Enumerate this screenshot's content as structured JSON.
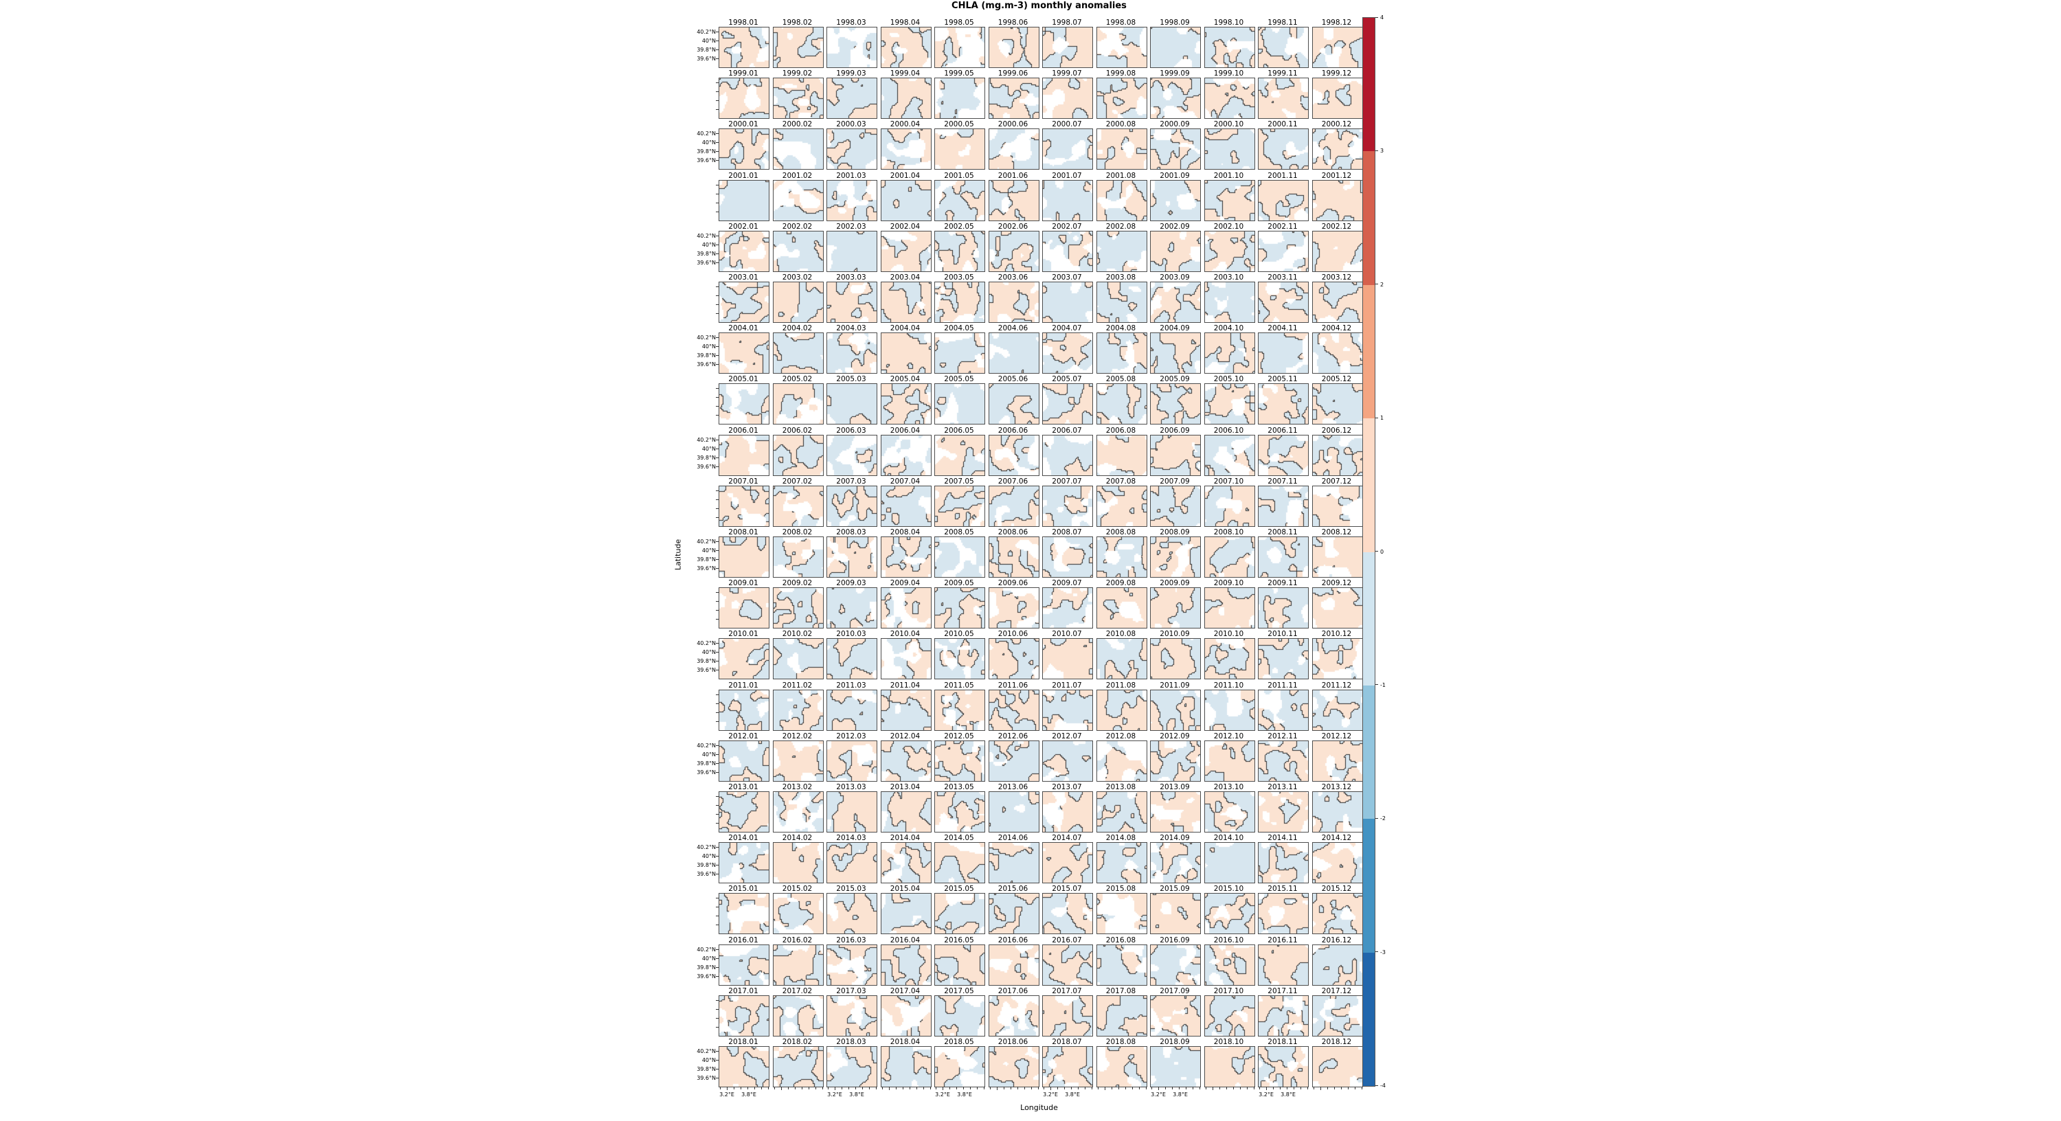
{
  "title": "CHLA (mg.m-3) monthly anomalies",
  "axes": {
    "xlabel": "Longitude",
    "ylabel": "Latitude"
  },
  "grid": {
    "years": [
      1998,
      1999,
      2000,
      2001,
      2002,
      2003,
      2004,
      2005,
      2006,
      2007,
      2008,
      2009,
      2010,
      2011,
      2012,
      2013,
      2014,
      2015,
      2016,
      2017,
      2018
    ],
    "months": [
      "01",
      "02",
      "03",
      "04",
      "05",
      "06",
      "07",
      "08",
      "09",
      "10",
      "11",
      "12"
    ],
    "y_tick_labels": [
      "40.2°N",
      "40°N",
      "39.8°N",
      "39.6°N"
    ],
    "x_tick_labels": [
      "3.2°E",
      "3.8°E"
    ]
  },
  "colorbar": {
    "tick_labels": [
      "4",
      "3",
      "2",
      "1",
      "0",
      "-1",
      "-2",
      "-3",
      "-4"
    ],
    "segment_colors_top_to_bottom": [
      "#b2182b",
      "#d6604d",
      "#f4a582",
      "#fddbc7",
      "#d1e5f0",
      "#92c5de",
      "#4393c3",
      "#2166ac"
    ]
  },
  "map_palette": {
    "positive_anomaly": "#fbe3d2",
    "negative_anomaly": "#d7e6ef",
    "masked": "#ffffff",
    "zero_contour": "#2a2a2a",
    "spine": "#4d4d4d"
  },
  "chart_data": {
    "type": "heatmap",
    "layout": "small multiples: 21 rows (years) x 12 columns (months), shared axes",
    "title": "CHLA (mg.m-3) monthly anomalies",
    "rows_years": [
      1998,
      1999,
      2000,
      2001,
      2002,
      2003,
      2004,
      2005,
      2006,
      2007,
      2008,
      2009,
      2010,
      2011,
      2012,
      2013,
      2014,
      2015,
      2016,
      2017,
      2018
    ],
    "cols_months": [
      "01",
      "02",
      "03",
      "04",
      "05",
      "06",
      "07",
      "08",
      "09",
      "10",
      "11",
      "12"
    ],
    "panel_title_format": "YYYY.MM",
    "xlabel": "Longitude",
    "ylabel": "Latitude",
    "x_ticks_deg_east": [
      3.2,
      3.8
    ],
    "y_ticks_deg_north": [
      40.2,
      40.0,
      39.8,
      39.6
    ],
    "value_units": "mg.m-3 anomaly",
    "value_range": [
      -4,
      4
    ],
    "colorbar_levels": [
      4,
      3,
      2,
      1,
      0,
      -1,
      -2,
      -3,
      -4
    ],
    "colorbar_colors_top_to_bottom": [
      "#b2182b",
      "#d6604d",
      "#f4a582",
      "#fddbc7",
      "#d1e5f0",
      "#92c5de",
      "#4393c3",
      "#2166ac"
    ],
    "rendering_note": "Each panel is a pixelated anomaly map: pale red = positive anomaly, pale blue = negative anomaly, white = masked/near-zero patches, thin dark line = zero contour; legend colorbar is discrete 8-class RdBu"
  }
}
